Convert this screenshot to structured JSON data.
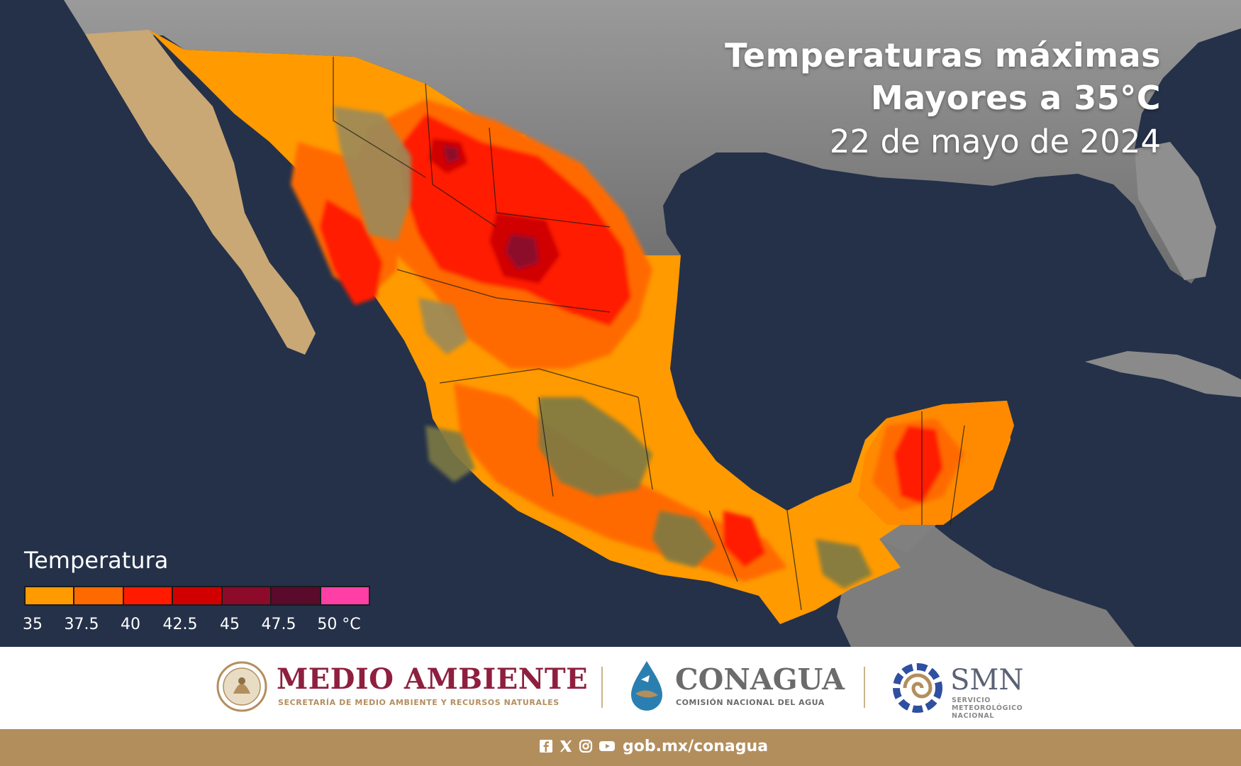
{
  "title": {
    "line1": "Temperaturas máximas",
    "line2": "Mayores a 35°C",
    "line3": "22 de mayo de 2024"
  },
  "legend": {
    "title": "Temperatura",
    "ticks": [
      "35",
      "37.5",
      "40",
      "42.5",
      "45",
      "47.5",
      "50 °C"
    ],
    "colors": [
      "#ff9a00",
      "#ff6a00",
      "#ff1a00",
      "#d10000",
      "#8c0a2a",
      "#5a0a2a",
      "#ff3fa6"
    ]
  },
  "logos": {
    "medio_ambiente": "MEDIO AMBIENTE",
    "medio_ambiente_sub": "SECRETARÍA DE MEDIO AMBIENTE Y RECURSOS NATURALES",
    "conagua": "CONAGUA",
    "conagua_sub": "COMISIÓN NACIONAL DEL AGUA",
    "smn": "SMN",
    "smn_sub": "SERVICIO METEOROLÓGICO NACIONAL"
  },
  "footer": {
    "url": "gob.mx/conagua",
    "social_icons": [
      "facebook-icon",
      "x-icon",
      "instagram-icon",
      "youtube-icon"
    ]
  },
  "colors": {
    "ocean": "#243149",
    "land_gray": "#8e8e8e",
    "desert": "#c9a876",
    "vegetation": "#7a7a45",
    "brand_guinda": "#8e1f3f",
    "brand_gold": "#b38e5d"
  }
}
